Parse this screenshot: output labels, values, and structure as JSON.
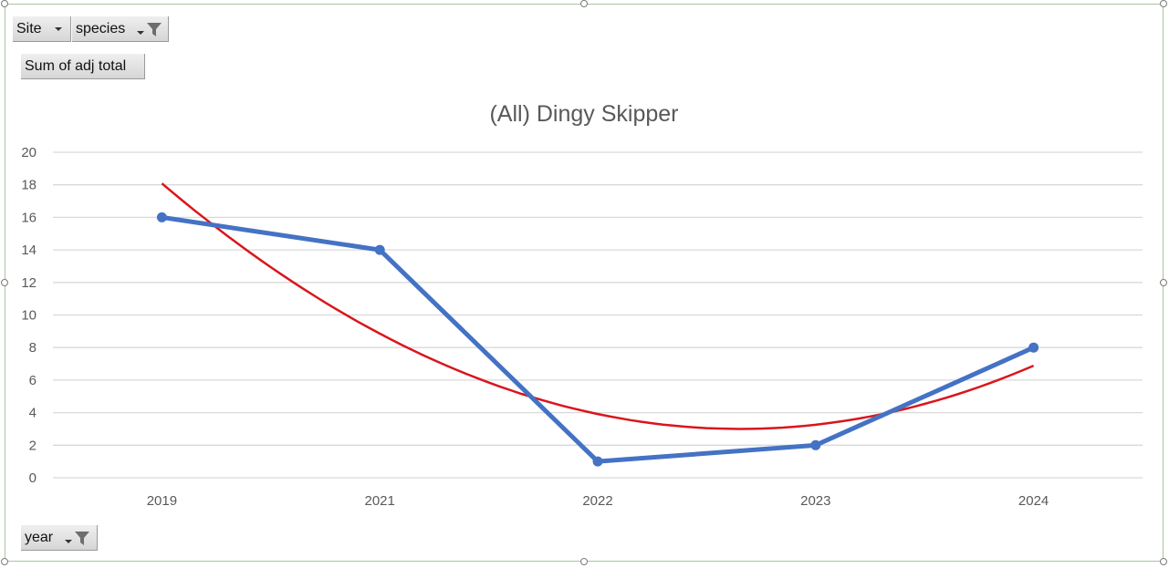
{
  "filters": {
    "site_label": "Site",
    "species_label": "species",
    "value_label": "Sum of adj total",
    "year_label": "year"
  },
  "colors": {
    "series": "#4472c4",
    "trendline": "#d9161c",
    "gridline": "#d9d9d9",
    "text": "#595959"
  },
  "icons": {
    "dropdown": "chevron-down-icon",
    "filter": "funnel-icon"
  },
  "chart_data": {
    "type": "line",
    "title": "(All) Dingy Skipper",
    "categories": [
      "2019",
      "2021",
      "2022",
      "2023",
      "2024"
    ],
    "series": [
      {
        "values": [
          16,
          14,
          1,
          2,
          8
        ]
      }
    ],
    "trendline": {
      "type": "polynomial",
      "order": 2
    },
    "xlabel": "",
    "ylabel": "",
    "ylim": [
      0,
      20
    ],
    "yticks": [
      0,
      2,
      4,
      6,
      8,
      10,
      12,
      14,
      16,
      18,
      20
    ],
    "grid": true,
    "legend": "none"
  }
}
